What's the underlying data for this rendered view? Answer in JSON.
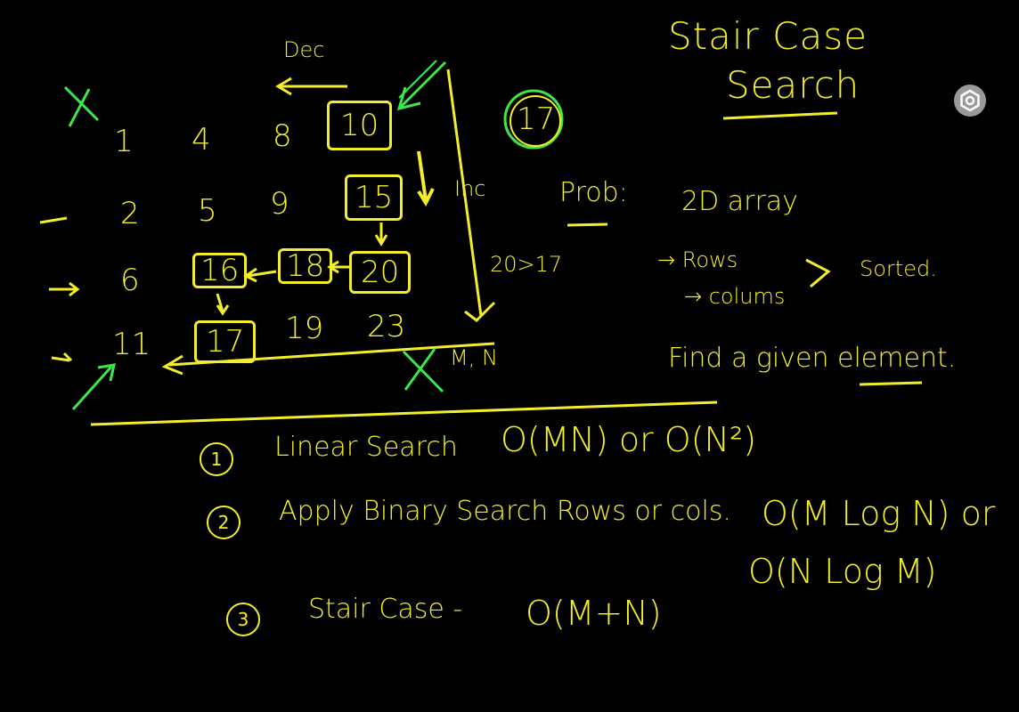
{
  "title": {
    "line1": "Stair Case",
    "line2": "Search"
  },
  "matrix": [
    [
      "1",
      "4",
      "8",
      "10"
    ],
    [
      "2",
      "5",
      "9",
      "15"
    ],
    [
      "6",
      "16",
      "18",
      "20"
    ],
    [
      "11",
      "17",
      "19",
      "23"
    ]
  ],
  "annotations": {
    "dec": "Dec",
    "inc": "Inc",
    "target": "17",
    "compare": "20>17",
    "mn": "M, N"
  },
  "problem": {
    "label": "Prob:",
    "desc": "2D array",
    "rows": "→ Rows",
    "columns": "→ colums",
    "sorted": "Sorted.",
    "find": "Find a given element."
  },
  "approaches": [
    {
      "num": "1",
      "text": "Linear Search",
      "complexity": "O(MN) or O(N²)"
    },
    {
      "num": "2",
      "text": "Apply Binary Search Rows or cols.",
      "complexity": "O(M Log N) or",
      "complexity2": "O(N Log M)"
    },
    {
      "num": "3",
      "text": "Stair Case -",
      "complexity": "O(M+N)"
    }
  ],
  "colors": {
    "ink": "#f4ee2a",
    "highlight": "#3be84a",
    "background": "#000000",
    "button": "#9a9a9a"
  },
  "icons": {
    "settings": "settings-icon"
  }
}
